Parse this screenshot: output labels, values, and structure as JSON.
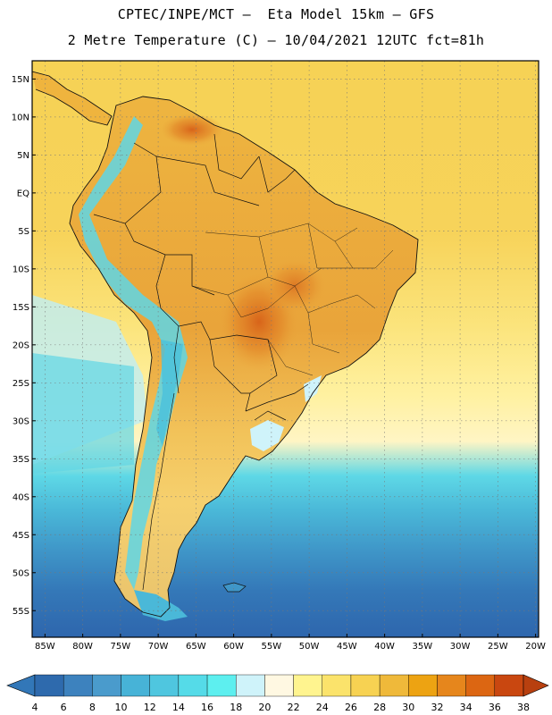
{
  "title_line1": "CPTEC/INPE/MCT –  Eta Model 15km – GFS",
  "title_line2": "2 Metre Temperature (C) – 10/04/2021 12UTC fct=81h",
  "lat_labels": [
    "15N",
    "10N",
    "5N",
    "EQ",
    "5S",
    "10S",
    "15S",
    "20S",
    "25S",
    "30S",
    "35S",
    "40S",
    "45S",
    "50S",
    "55S"
  ],
  "lat_values": [
    15,
    10,
    5,
    0,
    -5,
    -10,
    -15,
    -20,
    -25,
    -30,
    -35,
    -40,
    -45,
    -50,
    -55
  ],
  "lon_labels": [
    "85W",
    "80W",
    "75W",
    "70W",
    "65W",
    "60W",
    "55W",
    "50W",
    "45W",
    "40W",
    "35W",
    "30W",
    "25W",
    "20W"
  ],
  "lon_values": [
    -85,
    -80,
    -75,
    -70,
    -65,
    -60,
    -55,
    -50,
    -45,
    -40,
    -35,
    -30,
    -25,
    -20
  ],
  "colorbar": {
    "ticks": [
      "4",
      "6",
      "8",
      "10",
      "12",
      "14",
      "16",
      "18",
      "20",
      "22",
      "24",
      "26",
      "28",
      "30",
      "32",
      "34",
      "36",
      "38"
    ],
    "colors": [
      "#2e6aad",
      "#3d82be",
      "#4a9bcc",
      "#47b3d7",
      "#4fc6df",
      "#55dbe8",
      "#5defef",
      "#cff3fa",
      "#fff8e2",
      "#fff48f",
      "#fbe36b",
      "#f7d252",
      "#efb93a",
      "#eda312",
      "#e6861c",
      "#dc6612",
      "#c94710"
    ],
    "low_color": "#3277b8",
    "high_color": "#b8400f"
  }
}
